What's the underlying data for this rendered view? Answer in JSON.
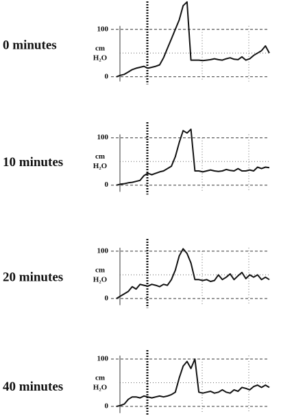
{
  "chart_data": [
    {
      "type": "line",
      "title": "0 minutes",
      "ylabel": "cm H₂O",
      "color": "#111111",
      "ylim": [
        -10,
        162
      ],
      "yticks": [
        0,
        100
      ],
      "grid": true,
      "values": [
        0,
        3,
        5,
        10,
        15,
        18,
        20,
        22,
        18,
        20,
        22,
        25,
        40,
        60,
        80,
        100,
        120,
        150,
        158,
        35,
        35,
        35,
        34,
        35,
        36,
        38,
        36,
        35,
        38,
        40,
        37,
        36,
        42,
        35,
        38,
        45,
        50,
        55,
        65,
        50
      ]
    },
    {
      "type": "line",
      "title": "10 minutes",
      "ylabel": "cm H₂O",
      "color": "#111111",
      "ylim": [
        -14,
        130
      ],
      "yticks": [
        0,
        100
      ],
      "grid": true,
      "values": [
        0,
        2,
        3,
        5,
        6,
        8,
        10,
        20,
        25,
        22,
        25,
        28,
        30,
        35,
        40,
        60,
        90,
        115,
        110,
        118,
        30,
        30,
        28,
        30,
        32,
        30,
        29,
        30,
        33,
        31,
        30,
        35,
        30,
        30,
        32,
        30,
        38,
        35,
        38,
        37
      ]
    },
    {
      "type": "line",
      "title": "20 minutes",
      "ylabel": "cm H₂O",
      "color": "#111111",
      "ylim": [
        -14,
        123
      ],
      "yticks": [
        0,
        100
      ],
      "grid": true,
      "values": [
        0,
        5,
        10,
        15,
        25,
        20,
        30,
        28,
        26,
        30,
        28,
        25,
        30,
        28,
        40,
        60,
        90,
        105,
        95,
        75,
        40,
        40,
        38,
        40,
        36,
        38,
        50,
        40,
        45,
        52,
        40,
        48,
        55,
        42,
        50,
        45,
        50,
        40,
        45,
        40
      ]
    },
    {
      "type": "line",
      "title": "40 minutes",
      "ylabel": "cm H₂O",
      "color": "#111111",
      "ylim": [
        -14,
        116
      ],
      "yticks": [
        0,
        100
      ],
      "grid": true,
      "values": [
        0,
        2,
        5,
        15,
        20,
        20,
        18,
        22,
        20,
        18,
        20,
        22,
        20,
        22,
        25,
        30,
        60,
        85,
        95,
        80,
        100,
        30,
        28,
        30,
        32,
        28,
        30,
        35,
        30,
        28,
        35,
        32,
        40,
        38,
        35,
        42,
        45,
        40,
        45,
        40
      ]
    }
  ]
}
